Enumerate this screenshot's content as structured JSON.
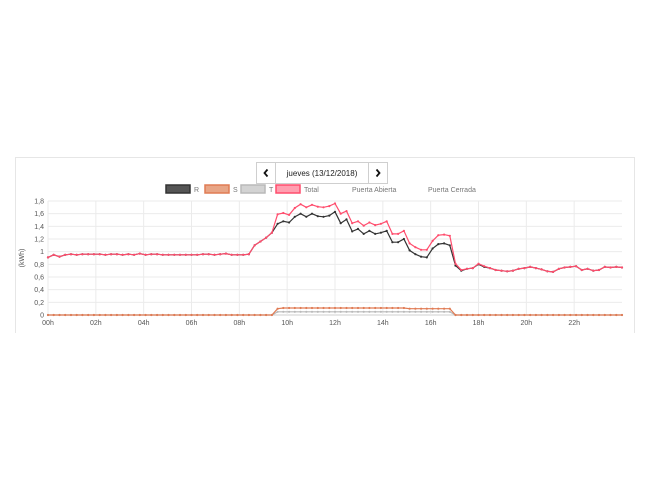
{
  "nav": {
    "date_label": "jueves (13/12/2018)"
  },
  "chart_data": {
    "type": "line",
    "xlabel": "",
    "ylabel": "(kWh)",
    "ylim": [
      0,
      1.8
    ],
    "y_ticks": [
      "0",
      "0,2",
      "0,4",
      "0,6",
      "0,8",
      "1",
      "1,2",
      "1,4",
      "1,6",
      "1,8"
    ],
    "x_ticks": [
      "00h",
      "02h",
      "04h",
      "06h",
      "08h",
      "10h",
      "12h",
      "14h",
      "16h",
      "18h",
      "20h",
      "22h"
    ],
    "grid": true,
    "legend_position": "top",
    "legend": [
      {
        "name": "R",
        "color": "#333333"
      },
      {
        "name": "S",
        "color": "#e07b54"
      },
      {
        "name": "T",
        "color": "#b9b9b9"
      },
      {
        "name": "Total",
        "color": "#ff4d6d"
      },
      {
        "name": "Puerta Abierta",
        "color": ""
      },
      {
        "name": "Puerta Cerrada",
        "color": ""
      }
    ],
    "series": [
      {
        "name": "R",
        "color": "#333333",
        "values": [
          0.91,
          0.95,
          0.92,
          0.95,
          0.96,
          0.95,
          0.96,
          0.96,
          0.96,
          0.96,
          0.95,
          0.96,
          0.96,
          0.95,
          0.96,
          0.95,
          0.97,
          0.95,
          0.96,
          0.96,
          0.95,
          0.95,
          0.95,
          0.95,
          0.95,
          0.95,
          0.95,
          0.96,
          0.96,
          0.95,
          0.96,
          0.97,
          0.95,
          0.95,
          0.95,
          0.96,
          1.1,
          1.16,
          1.22,
          1.3,
          1.44,
          1.48,
          1.46,
          1.55,
          1.6,
          1.55,
          1.6,
          1.56,
          1.55,
          1.57,
          1.63,
          1.45,
          1.51,
          1.32,
          1.36,
          1.28,
          1.33,
          1.28,
          1.3,
          1.33,
          1.15,
          1.15,
          1.2,
          1.02,
          0.96,
          0.92,
          0.91,
          1.05,
          1.12,
          1.13,
          1.1,
          0.78,
          0.7,
          0.73,
          0.74,
          0.8,
          0.76,
          0.74,
          0.71,
          0.7,
          0.69,
          0.7,
          0.73,
          0.74,
          0.76,
          0.74,
          0.72,
          0.69,
          0.68,
          0.73,
          0.75,
          0.76,
          0.77,
          0.71,
          0.73,
          0.7,
          0.71,
          0.76,
          0.75,
          0.76,
          0.75
        ]
      },
      {
        "name": "S",
        "color": "#e07b54",
        "values": [
          0,
          0,
          0,
          0,
          0,
          0,
          0,
          0,
          0,
          0,
          0,
          0,
          0,
          0,
          0,
          0,
          0,
          0,
          0,
          0,
          0,
          0,
          0,
          0,
          0,
          0,
          0,
          0,
          0,
          0,
          0,
          0,
          0,
          0,
          0,
          0,
          0,
          0,
          0,
          0,
          0.1,
          0.11,
          0.11,
          0.11,
          0.11,
          0.11,
          0.11,
          0.11,
          0.11,
          0.11,
          0.11,
          0.11,
          0.11,
          0.11,
          0.11,
          0.11,
          0.11,
          0.11,
          0.11,
          0.11,
          0.11,
          0.11,
          0.11,
          0.1,
          0.1,
          0.1,
          0.1,
          0.1,
          0.1,
          0.1,
          0.1,
          0,
          0,
          0,
          0,
          0,
          0,
          0,
          0,
          0,
          0,
          0,
          0,
          0,
          0,
          0,
          0,
          0,
          0,
          0,
          0,
          0,
          0,
          0,
          0,
          0,
          0,
          0,
          0,
          0,
          0
        ]
      },
      {
        "name": "T",
        "color": "#b9b9b9",
        "values": [
          0,
          0,
          0,
          0,
          0,
          0,
          0,
          0,
          0,
          0,
          0,
          0,
          0,
          0,
          0,
          0,
          0,
          0,
          0,
          0,
          0,
          0,
          0,
          0,
          0,
          0,
          0,
          0,
          0,
          0,
          0,
          0,
          0,
          0,
          0,
          0,
          0,
          0,
          0,
          0,
          0.05,
          0.05,
          0.05,
          0.05,
          0.05,
          0.05,
          0.05,
          0.05,
          0.05,
          0.05,
          0.05,
          0.05,
          0.05,
          0.05,
          0.05,
          0.05,
          0.05,
          0.05,
          0.05,
          0.05,
          0.05,
          0.05,
          0.05,
          0.05,
          0.05,
          0.05,
          0.05,
          0.05,
          0.05,
          0.05,
          0.05,
          0,
          0,
          0,
          0,
          0,
          0,
          0,
          0,
          0,
          0,
          0,
          0,
          0,
          0,
          0,
          0,
          0,
          0,
          0,
          0,
          0,
          0,
          0,
          0,
          0,
          0,
          0,
          0,
          0,
          0
        ]
      },
      {
        "name": "Total",
        "color": "#ff4d6d",
        "values": [
          0.91,
          0.95,
          0.92,
          0.95,
          0.96,
          0.95,
          0.96,
          0.96,
          0.96,
          0.96,
          0.95,
          0.96,
          0.96,
          0.95,
          0.96,
          0.95,
          0.97,
          0.95,
          0.96,
          0.96,
          0.95,
          0.95,
          0.95,
          0.95,
          0.95,
          0.95,
          0.95,
          0.96,
          0.96,
          0.95,
          0.96,
          0.97,
          0.95,
          0.95,
          0.95,
          0.96,
          1.1,
          1.16,
          1.22,
          1.3,
          1.59,
          1.61,
          1.58,
          1.69,
          1.75,
          1.7,
          1.74,
          1.71,
          1.7,
          1.72,
          1.76,
          1.6,
          1.64,
          1.45,
          1.48,
          1.41,
          1.46,
          1.42,
          1.44,
          1.48,
          1.28,
          1.28,
          1.33,
          1.13,
          1.07,
          1.03,
          1.03,
          1.17,
          1.26,
          1.27,
          1.25,
          0.81,
          0.71,
          0.73,
          0.74,
          0.81,
          0.77,
          0.74,
          0.71,
          0.7,
          0.69,
          0.7,
          0.73,
          0.74,
          0.76,
          0.74,
          0.72,
          0.69,
          0.68,
          0.73,
          0.75,
          0.76,
          0.77,
          0.71,
          0.73,
          0.7,
          0.71,
          0.76,
          0.75,
          0.76,
          0.75
        ]
      }
    ]
  }
}
